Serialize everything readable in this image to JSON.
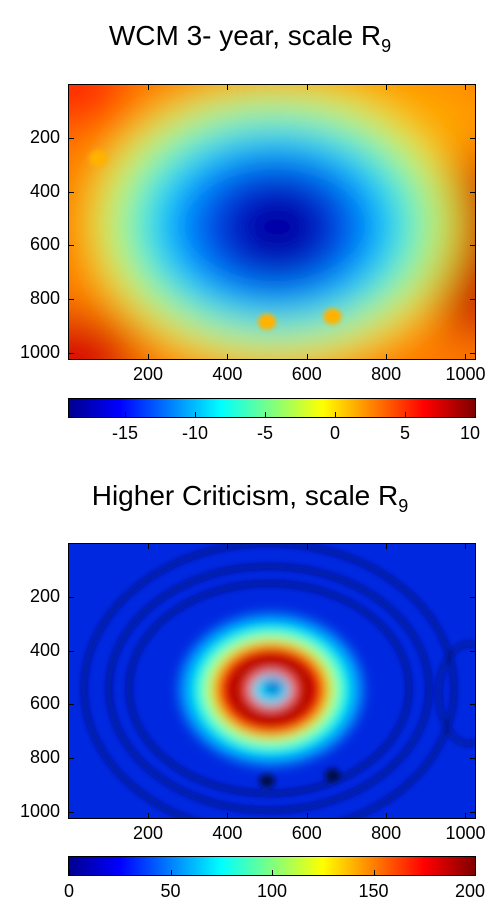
{
  "chart_data": [
    {
      "type": "heatmap",
      "title_main": "WCM 3- year, scale R",
      "title_sub": "9",
      "x_ticks": [
        "200",
        "400",
        "600",
        "800",
        "1000"
      ],
      "y_ticks": [
        "200",
        "400",
        "600",
        "800",
        "1000"
      ],
      "xlim": [
        1,
        1024
      ],
      "ylim": [
        1,
        1024
      ],
      "y_reversed": true,
      "colormap": "jet",
      "colorbar": {
        "range": [
          -19,
          10
        ],
        "ticks": [
          "-15",
          "-10",
          "-5",
          "0",
          "5",
          "10"
        ],
        "tick_values": [
          -15,
          -10,
          -5,
          0,
          5,
          10
        ],
        "placement": "bottom"
      },
      "field_shape": "broad negative basin centered near (520, 530), rising to positive values at the edges, highest near the right edge around y=600",
      "marked_points": [
        {
          "x": 75,
          "y": 275
        },
        {
          "x": 500,
          "y": 885
        },
        {
          "x": 665,
          "y": 865
        }
      ]
    },
    {
      "type": "heatmap",
      "title_main": "Higher Criticism, scale R",
      "title_sub": "9",
      "x_ticks": [
        "200",
        "400",
        "600",
        "800",
        "1000"
      ],
      "y_ticks": [
        "200",
        "400",
        "600",
        "800",
        "1000"
      ],
      "xlim": [
        1,
        1024
      ],
      "ylim": [
        1,
        1024
      ],
      "y_reversed": true,
      "colormap": "jet",
      "colorbar": {
        "range": [
          0,
          200
        ],
        "ticks": [
          "0",
          "50",
          "100",
          "150",
          "200"
        ],
        "tick_values": [
          0,
          50,
          100,
          150,
          200
        ],
        "placement": "bottom"
      },
      "field_shape": "ring of high values around center (510, 540) with low center and low background contour rings",
      "marked_points": [
        {
          "x": 500,
          "y": 885
        },
        {
          "x": 665,
          "y": 865
        }
      ]
    }
  ]
}
